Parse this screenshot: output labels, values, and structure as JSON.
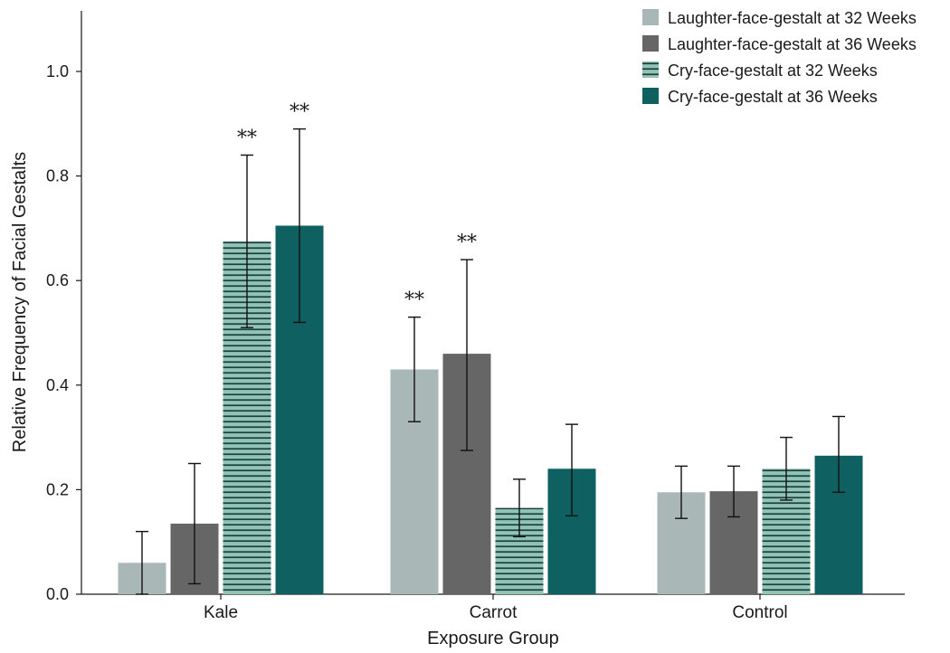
{
  "chart_data": {
    "type": "bar",
    "categories": [
      "Kale",
      "Carrot",
      "Control"
    ],
    "xlabel": "Exposure Group",
    "ylabel": "Relative Frequency of Facial Gestalts",
    "ylim": [
      0,
      1.1
    ],
    "yticks": [
      "0.0",
      "0.2",
      "0.4",
      "0.6",
      "0.8",
      "1.0"
    ],
    "ytick_values": [
      0,
      0.2,
      0.4,
      0.6,
      0.8,
      1.0
    ],
    "legend_position": "top-right",
    "grid": false,
    "series": [
      {
        "name": "Laughter-face-gestalt at 32 Weeks",
        "color": "#a9b8b6",
        "pattern": "solid",
        "values": [
          0.06,
          0.43,
          0.195
        ],
        "error_low": [
          0.0,
          0.33,
          0.145
        ],
        "error_high": [
          0.12,
          0.53,
          0.245
        ],
        "significance": [
          "",
          "**",
          ""
        ]
      },
      {
        "name": "Laughter-face-gestalt at 36 Weeks",
        "color": "#666666",
        "pattern": "solid",
        "values": [
          0.135,
          0.46,
          0.197
        ],
        "error_low": [
          0.02,
          0.275,
          0.148
        ],
        "error_high": [
          0.25,
          0.64,
          0.245
        ],
        "significance": [
          "",
          "**",
          ""
        ]
      },
      {
        "name": "Cry-face-gestalt at 32 Weeks",
        "color": "#8fc4b6",
        "pattern": "stripes",
        "values": [
          0.675,
          0.165,
          0.24
        ],
        "error_low": [
          0.51,
          0.11,
          0.18
        ],
        "error_high": [
          0.84,
          0.22,
          0.3
        ],
        "significance": [
          "**",
          "",
          ""
        ]
      },
      {
        "name": "Cry-face-gestalt at 36 Weeks",
        "color": "#0f6060",
        "pattern": "solid",
        "values": [
          0.705,
          0.24,
          0.265
        ],
        "error_low": [
          0.52,
          0.15,
          0.195
        ],
        "error_high": [
          0.89,
          0.325,
          0.34
        ],
        "significance": [
          "**",
          "",
          ""
        ]
      }
    ]
  }
}
